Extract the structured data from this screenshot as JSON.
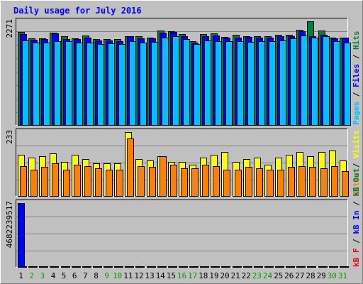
{
  "chart_data": {
    "type": "bar",
    "title": "Daily usage for July 2016",
    "categories": [
      "1",
      "2",
      "3",
      "4",
      "5",
      "6",
      "7",
      "8",
      "9",
      "10",
      "11",
      "12",
      "13",
      "14",
      "15",
      "16",
      "17",
      "18",
      "19",
      "20",
      "21",
      "22",
      "23",
      "24",
      "25",
      "26",
      "27",
      "28",
      "29",
      "30",
      "31"
    ],
    "weekend_days": [
      "2",
      "3",
      "9",
      "10",
      "16",
      "17",
      "23",
      "24",
      "30",
      "31"
    ],
    "colors": {
      "hits": "#008040",
      "files": "#0000FF",
      "pages": "#00C0FF",
      "visits": "#FFFF00",
      "sites": "#FF8000",
      "kbin": "#0000FF",
      "kbout": "#008040",
      "kbf": "#FF0000",
      "title": "#0000FF",
      "weekend": "#00A000",
      "weekday": "#000000",
      "panel": "#C0C0C0"
    },
    "panels": [
      {
        "ylabel_parts": [
          {
            "text": "Pages",
            "color": "#00C0FF"
          },
          {
            "text": " / ",
            "color": "#000000"
          },
          {
            "text": "Files",
            "color": "#0000FF"
          },
          {
            "text": " / ",
            "color": "#000000"
          },
          {
            "text": "Hits",
            "color": "#008040"
          }
        ],
        "ymax_label": "2271",
        "ymax": 2271,
        "series": [
          {
            "name": "Hits",
            "key": "hits",
            "values": [
              2030,
              1900,
              1900,
              2020,
              1950,
              1900,
              1960,
              1880,
              1880,
              1880,
              1950,
              1940,
              1920,
              2070,
              2060,
              1990,
              1830,
              1990,
              2000,
              1930,
              1970,
              1950,
              1950,
              1940,
              1980,
              1980,
              2080,
              2271,
              2070,
              1920,
              1920
            ]
          },
          {
            "name": "Files",
            "key": "files",
            "values": [
              1990,
              1870,
              1880,
              2000,
              1880,
              1880,
              1920,
              1850,
              1850,
              1840,
              1940,
              1900,
              1890,
              2020,
              2030,
              1940,
              1810,
              1950,
              1960,
              1910,
              1910,
              1930,
              1920,
              1910,
              1950,
              1940,
              2050,
              1950,
              1980,
              1900,
              1910
            ]
          },
          {
            "name": "Pages",
            "key": "pages",
            "values": [
              1850,
              1800,
              1800,
              1840,
              1830,
              1810,
              1800,
              1780,
              1790,
              1770,
              1840,
              1810,
              1820,
              1920,
              1950,
              1880,
              1770,
              1850,
              1840,
              1840,
              1830,
              1820,
              1840,
              1840,
              1850,
              1900,
              1960,
              1920,
              1950,
              1840,
              1800
            ]
          }
        ]
      },
      {
        "ylabel_parts": [
          {
            "text": "Sites",
            "color": "#FF8000"
          },
          {
            "text": " / ",
            "color": "#000000"
          },
          {
            "text": "Visits",
            "color": "#FFFF00"
          }
        ],
        "ymax_label": "233",
        "ymax": 233,
        "series": [
          {
            "name": "Visits",
            "key": "visits",
            "values": [
              150,
              140,
              145,
              155,
              125,
              150,
              135,
              120,
              120,
              120,
              233,
              135,
              130,
              145,
              125,
              125,
              115,
              140,
              150,
              160,
              125,
              135,
              140,
              115,
              140,
              150,
              160,
              145,
              160,
              165,
              130
            ]
          },
          {
            "name": "Sites",
            "key": "sites",
            "values": [
              110,
              95,
              105,
              120,
              95,
              115,
              110,
              100,
              95,
              95,
              210,
              110,
              105,
              145,
              115,
              100,
              100,
              115,
              110,
              95,
              95,
              105,
              100,
              95,
              95,
              105,
              110,
              105,
              100,
              110,
              90
            ]
          }
        ]
      },
      {
        "ylabel_parts": [
          {
            "text": "kB F",
            "color": "#FF0000"
          },
          {
            "text": " / ",
            "color": "#000000"
          },
          {
            "text": "kB In",
            "color": "#0000FF"
          },
          {
            "text": " / ",
            "color": "#000000"
          },
          {
            "text": "kB Out",
            "color": "#008040"
          }
        ],
        "ymax_label": "4682239517",
        "ymax": 4682239517,
        "series": [
          {
            "name": "kB In",
            "key": "kbin",
            "values": [
              4682239517,
              0,
              0,
              0,
              0,
              0,
              0,
              0,
              0,
              0,
              0,
              0,
              0,
              0,
              0,
              0,
              0,
              0,
              0,
              0,
              0,
              0,
              0,
              0,
              0,
              0,
              0,
              0,
              0,
              0,
              0
            ]
          },
          {
            "name": "kB Out",
            "key": "kbout",
            "values": [
              0,
              0,
              0,
              0,
              0,
              0,
              0,
              0,
              0,
              0,
              0,
              0,
              0,
              0,
              0,
              0,
              0,
              0,
              0,
              0,
              0,
              0,
              0,
              0,
              0,
              0,
              0,
              0,
              0,
              0,
              0
            ]
          }
        ]
      }
    ]
  }
}
